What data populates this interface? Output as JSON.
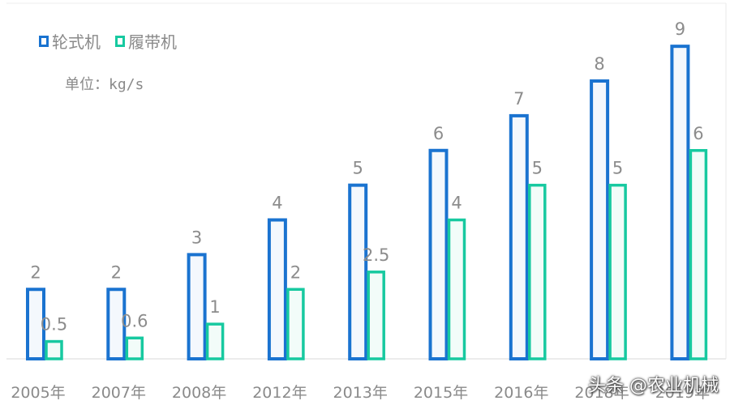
{
  "chart_data": {
    "type": "bar",
    "categories": [
      "2005年",
      "2007年",
      "2008年",
      "2012年",
      "2013年",
      "2015年",
      "2016年",
      "2018年",
      "2019年"
    ],
    "series": [
      {
        "name": "轮式机",
        "values": [
          2,
          2,
          3,
          4,
          5,
          6,
          7,
          8,
          9
        ],
        "color": "#1a73d0",
        "fill": "#f4f8fd"
      },
      {
        "name": "履带机",
        "values": [
          0.5,
          0.6,
          1,
          2,
          2.5,
          4,
          5,
          5,
          6
        ],
        "color": "#17c9a0",
        "fill": "#f2fcf9"
      }
    ],
    "data_labels": [
      [
        "2",
        "2",
        "3",
        "4",
        "5",
        "6",
        "7",
        "8",
        "9"
      ],
      [
        "0.5",
        "0.6",
        "1",
        "2",
        "2.5",
        "4",
        "5",
        "5",
        "6"
      ]
    ],
    "unit_label": "单位：kg/s",
    "ylim": [
      0,
      9.4
    ],
    "grid": false,
    "legend_position": "top-left"
  },
  "watermark": "头条 @农业机械"
}
